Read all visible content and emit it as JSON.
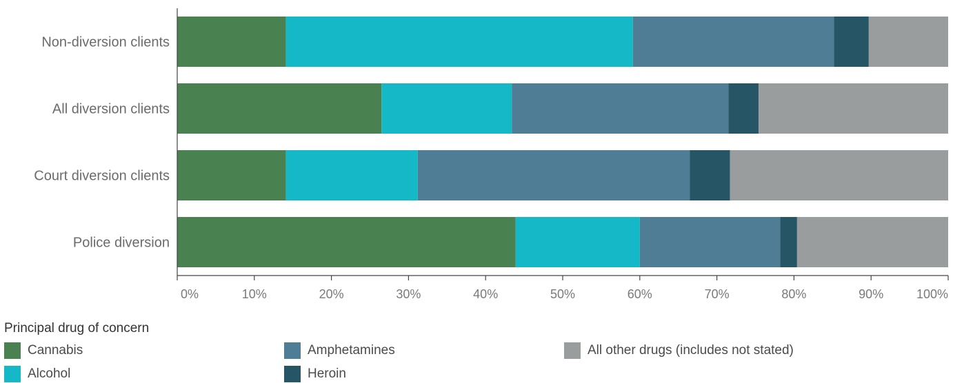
{
  "chart_data": {
    "type": "bar",
    "orientation": "horizontal",
    "stacked": true,
    "categories": [
      "Non-diversion clients",
      "All diversion clients",
      "Court diversion clients",
      "Police diversion"
    ],
    "series": [
      {
        "name": "Cannabis",
        "color": "#4a8150",
        "values": [
          14.1,
          26.5,
          14.1,
          43.9
        ]
      },
      {
        "name": "Alcohol",
        "color": "#14b8c6",
        "values": [
          45.0,
          16.9,
          17.1,
          16.1
        ]
      },
      {
        "name": "Amphetamines",
        "color": "#4f7d95",
        "values": [
          26.1,
          28.1,
          35.3,
          18.2
        ]
      },
      {
        "name": "Heroin",
        "color": "#265565",
        "values": [
          4.5,
          3.9,
          5.2,
          2.2
        ]
      },
      {
        "name": "All other drugs (includes not stated)",
        "color": "#9a9d9d",
        "values": [
          10.3,
          24.6,
          28.3,
          19.6
        ]
      }
    ],
    "x_ticks": [
      "0%",
      "10%",
      "20%",
      "30%",
      "40%",
      "50%",
      "60%",
      "70%",
      "80%",
      "90%",
      "100%"
    ],
    "xlim": [
      0,
      100
    ],
    "grid": false,
    "legend_placement": "bottom"
  },
  "legend": {
    "title": "Principal drug of concern"
  }
}
